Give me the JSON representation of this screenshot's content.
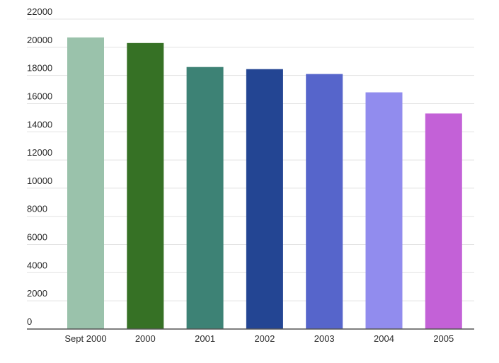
{
  "chart_data": {
    "type": "bar",
    "categories": [
      "Sept 2000",
      "2000",
      "2001",
      "2002",
      "2003",
      "2004",
      "2005"
    ],
    "values": [
      20700,
      20300,
      18600,
      18450,
      18100,
      16800,
      15300
    ],
    "colors": [
      "#9ac2ab",
      "#367125",
      "#3d8275",
      "#234593",
      "#5665cb",
      "#918cee",
      "#c361d7"
    ],
    "title": "",
    "xlabel": "",
    "ylabel": "",
    "ylim": [
      0,
      22000
    ],
    "y_ticks": [
      0,
      2000,
      4000,
      6000,
      8000,
      10000,
      12000,
      14000,
      16000,
      18000,
      20000,
      22000
    ],
    "y_tick_labels": [
      "0",
      "2000",
      "4000",
      "6000",
      "8000",
      "10000",
      "12000",
      "14000",
      "16000",
      "18000",
      "20000",
      "22000"
    ],
    "grid": true,
    "legend": "none"
  }
}
